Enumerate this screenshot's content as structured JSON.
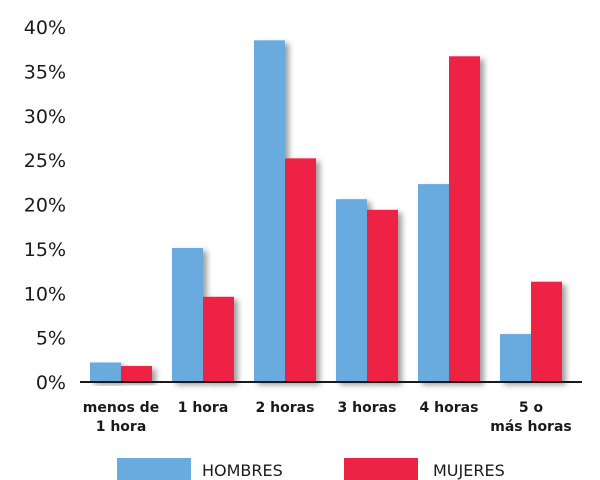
{
  "chart_data": {
    "type": "bar",
    "categories": [
      [
        "menos de",
        "1 hora"
      ],
      [
        "1 hora"
      ],
      [
        "2 horas"
      ],
      [
        "3 horas"
      ],
      [
        "4 horas"
      ],
      [
        "5 o",
        "más horas"
      ]
    ],
    "series": [
      {
        "name": "HOMBRES",
        "values": [
          2.2,
          15.1,
          38.5,
          20.6,
          22.3,
          5.4
        ],
        "color": "#6aabdf"
      },
      {
        "name": "MUJERES",
        "values": [
          1.8,
          9.6,
          25.2,
          19.4,
          36.7,
          11.3
        ],
        "color": "#ed2344"
      }
    ],
    "yticks": [
      "0%",
      "5%",
      "10%",
      "15%",
      "20%",
      "25%",
      "30%",
      "35%",
      "40%"
    ],
    "ylim": [
      0,
      40
    ],
    "grid": false,
    "legend": "bottom",
    "title": "",
    "xlabel": "",
    "ylabel": ""
  }
}
